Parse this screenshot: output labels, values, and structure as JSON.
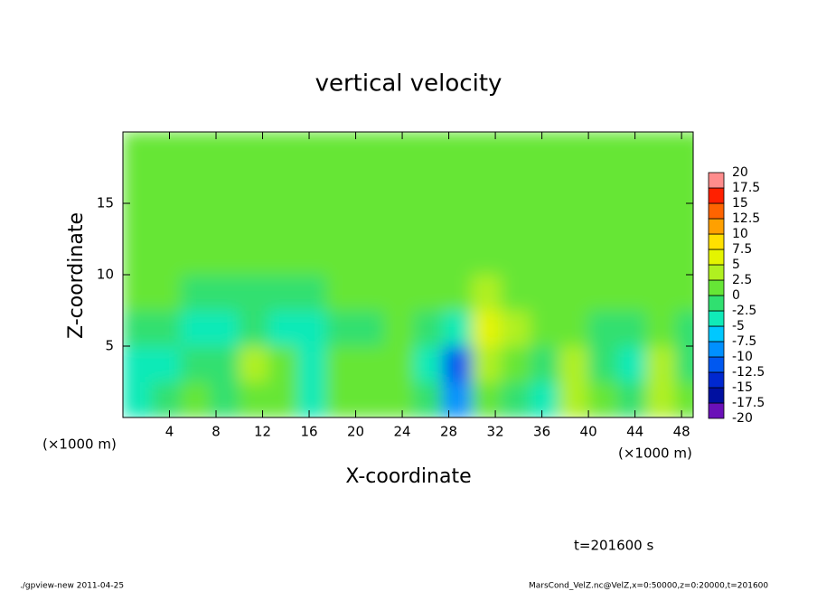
{
  "chart_data": {
    "type": "heatmap",
    "title": "vertical velocity",
    "x_label": "X-coordinate",
    "y_label": "Z-coordinate",
    "x_unit": "(×1000 m)",
    "time_label": "t=201600 s",
    "footer_left": "./gpview-new  2011-04-25",
    "footer_right": "MarsCond_VelZ.nc@VelZ,x=0:50000,z=0:20000,t=201600",
    "xlim": [
      0,
      49
    ],
    "ylim": [
      0,
      20
    ],
    "xticks": [
      4,
      8,
      12,
      16,
      20,
      24,
      28,
      32,
      36,
      40,
      44,
      48
    ],
    "yticks": [
      5,
      10,
      15
    ],
    "x": [
      1.25,
      3.75,
      6.25,
      8.75,
      11.25,
      13.75,
      16.25,
      18.75,
      21.25,
      23.75,
      26.25,
      28.75,
      31.25,
      33.75,
      36.25,
      38.75,
      41.25,
      43.75,
      46.25,
      48.75
    ],
    "y": [
      1.25,
      3.75,
      6.25,
      8.75,
      11.25,
      13.75,
      16.25,
      18.75
    ],
    "z": [
      [
        -3,
        -2,
        1,
        -2,
        2,
        1,
        -3,
        1,
        1,
        2,
        -1,
        -10,
        1,
        -2,
        -3,
        3,
        1,
        -2,
        4,
        1
      ],
      [
        -3,
        -3,
        -2,
        -1,
        3,
        2,
        -3,
        1,
        1,
        2,
        -3,
        -12,
        4,
        2,
        -1,
        3,
        -2,
        -3,
        3,
        -1
      ],
      [
        -2,
        -2,
        -3,
        -3,
        -2,
        -3,
        -3,
        -2,
        -1,
        0,
        -2,
        -4,
        5,
        3,
        0,
        1,
        -1,
        -1,
        0,
        -1
      ],
      [
        1,
        1,
        -1,
        -1,
        -1,
        -1,
        -2,
        0,
        1,
        0,
        1,
        1,
        3,
        2,
        1,
        1,
        1,
        1,
        0,
        0
      ],
      [
        1,
        1,
        0,
        1,
        1,
        1,
        1,
        1,
        1,
        1,
        1,
        1,
        2,
        2,
        1,
        1,
        1,
        1,
        1,
        1
      ],
      [
        1,
        1,
        1,
        1,
        1,
        1,
        1,
        1,
        1,
        1,
        1,
        1,
        1,
        1,
        1,
        1,
        1,
        1,
        1,
        1
      ],
      [
        1,
        1,
        1,
        1,
        1,
        1,
        1,
        1,
        1,
        1,
        1,
        1,
        1,
        1,
        1,
        1,
        1,
        1,
        1,
        1
      ],
      [
        1,
        1,
        1,
        1,
        1,
        1,
        1,
        1,
        1,
        1,
        1,
        1,
        1,
        1,
        1,
        1,
        1,
        1,
        1,
        1
      ]
    ],
    "colorbar": {
      "levels": [
        -20,
        -17.5,
        -15,
        -12.5,
        -10,
        -7.5,
        -5,
        -2.5,
        0,
        2.5,
        5,
        7.5,
        10,
        12.5,
        15,
        17.5,
        20
      ],
      "colors": [
        "#6a10b8",
        "#0010a0",
        "#0028d0",
        "#0058f0",
        "#0090ff",
        "#00c8ff",
        "#10eab8",
        "#30e070",
        "#66e636",
        "#b0f020",
        "#e4f400",
        "#ffe000",
        "#ffa000",
        "#ff6400",
        "#ff2000",
        "#ff8c8c"
      ]
    }
  }
}
